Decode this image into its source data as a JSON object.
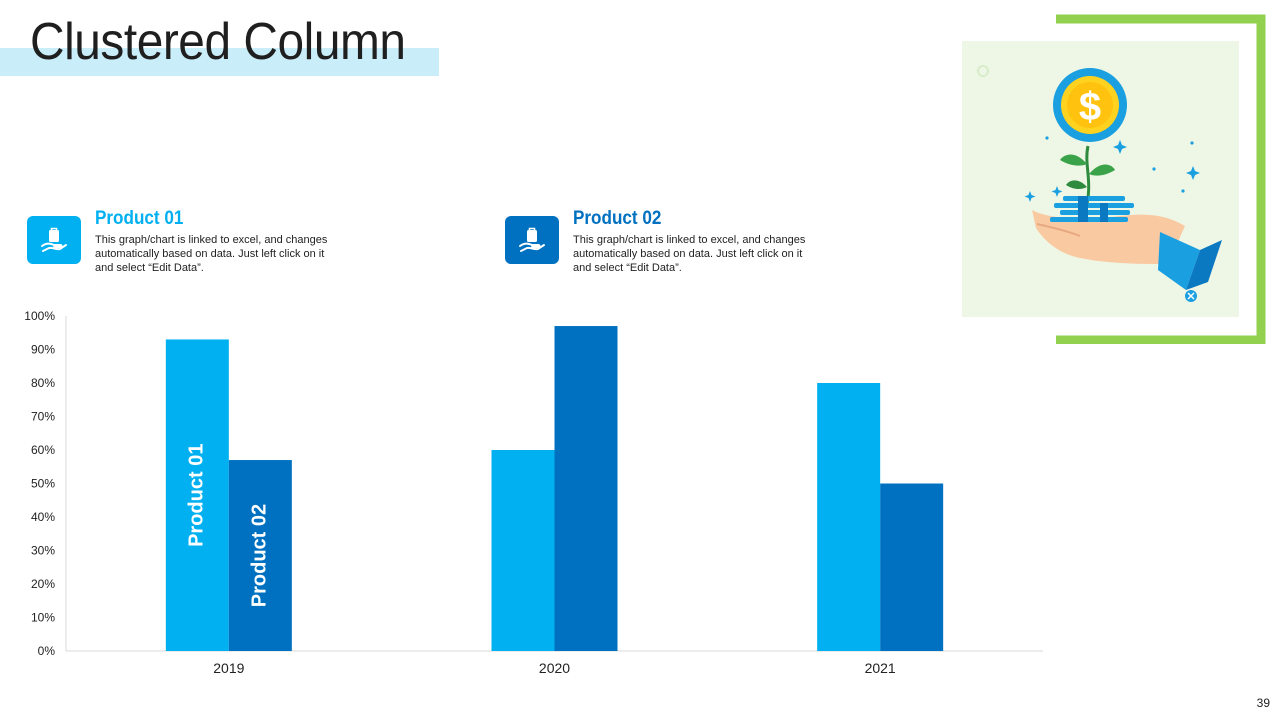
{
  "header": {
    "title": "Clustered Column"
  },
  "legend": [
    {
      "name": "Product 01",
      "description": "This graph/chart is linked to excel, and changes automatically based on data. Just left click on it and select “Edit Data”.",
      "icon": "hand-holding-bag-icon",
      "color": "#00b0f0"
    },
    {
      "name": "Product 02",
      "description": "This graph/chart is linked to excel, and changes automatically based on data. Just left click on it and select “Edit Data”.",
      "icon": "hand-holding-bag-icon",
      "color": "#0070c0"
    }
  ],
  "illustration": {
    "icon": "money-plant-in-hand-icon",
    "symbol": "$"
  },
  "page_number": "39",
  "colors": {
    "accent": "#00b0f0",
    "accent_dark": "#0070c0",
    "frame_green": "#92d050",
    "title_band": "#c9eefa"
  },
  "chart_data": {
    "type": "bar",
    "categories": [
      "2019",
      "2020",
      "2021"
    ],
    "series": [
      {
        "name": "Product 01",
        "values": [
          93,
          60,
          80
        ]
      },
      {
        "name": "Product 02",
        "values": [
          57,
          97,
          50
        ]
      }
    ],
    "ylim": [
      0,
      100
    ],
    "yticks": [
      0,
      10,
      20,
      30,
      40,
      50,
      60,
      70,
      80,
      90,
      100
    ],
    "y_tick_format": "percent",
    "grid": false,
    "series_labels_on_first_category": true
  }
}
